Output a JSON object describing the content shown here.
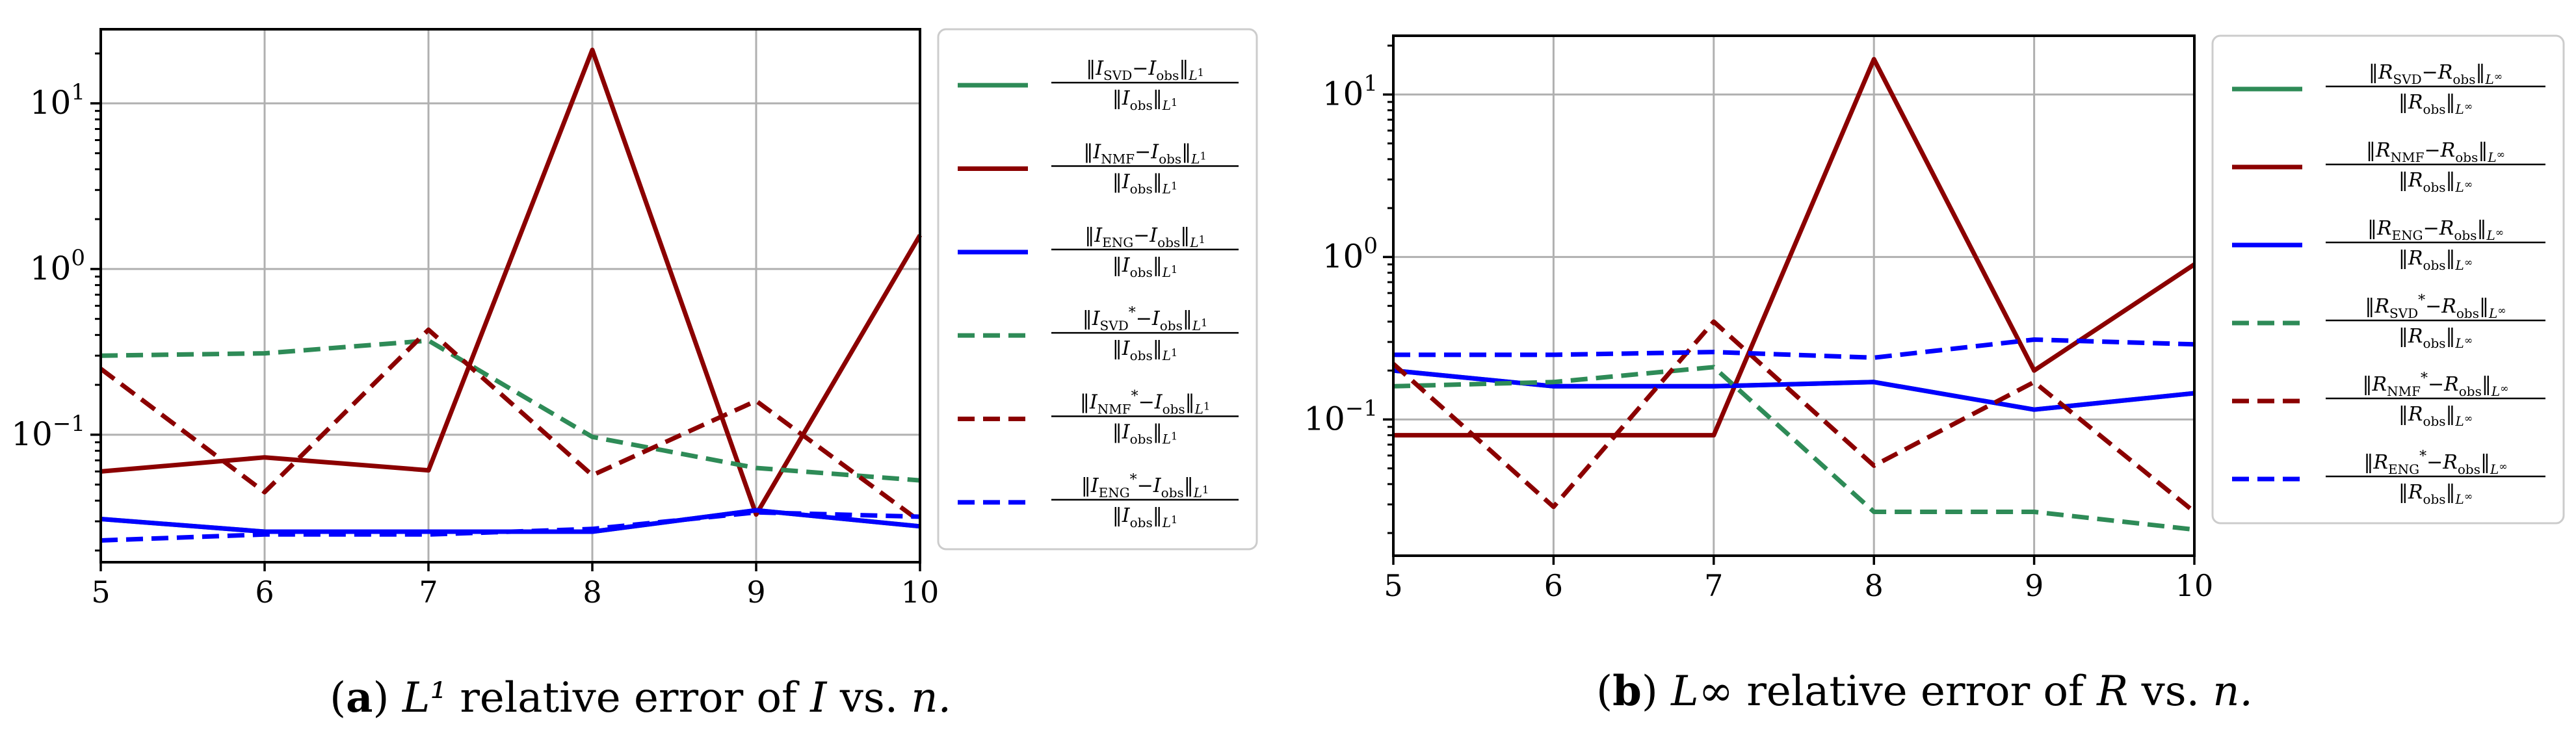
{
  "chart_data": [
    {
      "type": "line",
      "yscale": "log",
      "x": [
        5,
        6,
        7,
        8,
        9,
        10
      ],
      "xlim": [
        5,
        10
      ],
      "ylim": [
        0.017,
        28
      ],
      "xticks": [
        "5",
        "6",
        "7",
        "8",
        "9",
        "10"
      ],
      "yticks": [
        {
          "value": 0.1,
          "base": "10",
          "exp": "−1"
        },
        {
          "value": 1,
          "base": "10",
          "exp": "0"
        },
        {
          "value": 10,
          "base": "10",
          "exp": "1"
        }
      ],
      "grid": true,
      "legend_position": "outside-right",
      "caption": {
        "label": "a",
        "text": "L¹ relative error of I vs. n."
      },
      "series": [
        {
          "name": "‖I_SVD − I_obs‖_L1 / ‖I_obs‖_L1",
          "sym": "I",
          "sub": "SVD",
          "star": false,
          "norm": "L",
          "normsup": "1",
          "color": "#2e8b57",
          "dash": false,
          "values": [
            0.031,
            0.026,
            0.026,
            0.026,
            0.035,
            0.028
          ]
        },
        {
          "name": "‖I_NMF − I_obs‖_L1 / ‖I_obs‖_L1",
          "sym": "I",
          "sub": "NMF",
          "star": false,
          "norm": "L",
          "normsup": "1",
          "color": "#8b0000",
          "dash": false,
          "values": [
            0.06,
            0.073,
            0.061,
            21.0,
            0.033,
            1.6
          ]
        },
        {
          "name": "‖I_ENG − I_obs‖_L1 / ‖I_obs‖_L1",
          "sym": "I",
          "sub": "ENG",
          "star": false,
          "norm": "L",
          "normsup": "1",
          "color": "#0000ff",
          "dash": false,
          "values": [
            0.031,
            0.026,
            0.026,
            0.026,
            0.035,
            0.028
          ]
        },
        {
          "name": "‖I*_SVD − I_obs‖_L1 / ‖I_obs‖_L1",
          "sym": "I",
          "sub": "SVD",
          "star": true,
          "norm": "L",
          "normsup": "1",
          "color": "#2e8b57",
          "dash": true,
          "values": [
            0.3,
            0.31,
            0.37,
            0.097,
            0.063,
            0.053
          ]
        },
        {
          "name": "‖I*_NMF − I_obs‖_L1 / ‖I_obs‖_L1",
          "sym": "I",
          "sub": "NMF",
          "star": true,
          "norm": "L",
          "normsup": "1",
          "color": "#8b0000",
          "dash": true,
          "values": [
            0.25,
            0.045,
            0.43,
            0.057,
            0.16,
            0.03
          ]
        },
        {
          "name": "‖I*_ENG − I_obs‖_L1 / ‖I_obs‖_L1",
          "sym": "I",
          "sub": "ENG",
          "star": true,
          "norm": "L",
          "normsup": "1",
          "color": "#0000ff",
          "dash": true,
          "values": [
            0.023,
            0.025,
            0.025,
            0.027,
            0.034,
            0.032
          ]
        }
      ]
    },
    {
      "type": "line",
      "yscale": "log",
      "x": [
        5,
        6,
        7,
        8,
        9,
        10
      ],
      "xlim": [
        5,
        10
      ],
      "ylim": [
        0.0145,
        23
      ],
      "xticks": [
        "5",
        "6",
        "7",
        "8",
        "9",
        "10"
      ],
      "yticks": [
        {
          "value": 0.1,
          "base": "10",
          "exp": "−1"
        },
        {
          "value": 1,
          "base": "10",
          "exp": "0"
        },
        {
          "value": 10,
          "base": "10",
          "exp": "1"
        }
      ],
      "grid": true,
      "legend_position": "outside-right",
      "caption": {
        "label": "b",
        "text": "L∞ relative error of R vs. n."
      },
      "series": [
        {
          "name": "‖R_SVD − R_obs‖_L∞ / ‖R_obs‖_L∞",
          "sym": "R",
          "sub": "SVD",
          "star": false,
          "norm": "L",
          "normsup": "∞",
          "color": "#2e8b57",
          "dash": false,
          "values": [
            0.2,
            0.16,
            0.16,
            0.17,
            0.115,
            0.145
          ]
        },
        {
          "name": "‖R_NMF − R_obs‖_L∞ / ‖R_obs‖_L∞",
          "sym": "R",
          "sub": "NMF",
          "star": false,
          "norm": "L",
          "normsup": "∞",
          "color": "#8b0000",
          "dash": false,
          "values": [
            0.08,
            0.08,
            0.08,
            16.5,
            0.2,
            0.9
          ]
        },
        {
          "name": "‖R_ENG − R_obs‖_L∞ / ‖R_obs‖_L∞",
          "sym": "R",
          "sub": "ENG",
          "star": false,
          "norm": "L",
          "normsup": "∞",
          "color": "#0000ff",
          "dash": false,
          "values": [
            0.2,
            0.16,
            0.16,
            0.17,
            0.115,
            0.145
          ]
        },
        {
          "name": "‖R*_SVD − R_obs‖_L∞ / ‖R_obs‖_L∞",
          "sym": "R",
          "sub": "SVD",
          "star": true,
          "norm": "L",
          "normsup": "∞",
          "color": "#2e8b57",
          "dash": true,
          "values": [
            0.16,
            0.17,
            0.21,
            0.027,
            0.027,
            0.021
          ]
        },
        {
          "name": "‖R*_NMF − R_obs‖_L∞ / ‖R_obs‖_L∞",
          "sym": "R",
          "sub": "NMF",
          "star": true,
          "norm": "L",
          "normsup": "∞",
          "color": "#8b0000",
          "dash": true,
          "values": [
            0.22,
            0.029,
            0.4,
            0.052,
            0.17,
            0.027
          ]
        },
        {
          "name": "‖R*_ENG − R_obs‖_L∞ / ‖R_obs‖_L∞",
          "sym": "R",
          "sub": "ENG",
          "star": true,
          "norm": "L",
          "normsup": "∞",
          "color": "#0000ff",
          "dash": true,
          "values": [
            0.25,
            0.25,
            0.26,
            0.24,
            0.31,
            0.29
          ]
        }
      ]
    }
  ]
}
